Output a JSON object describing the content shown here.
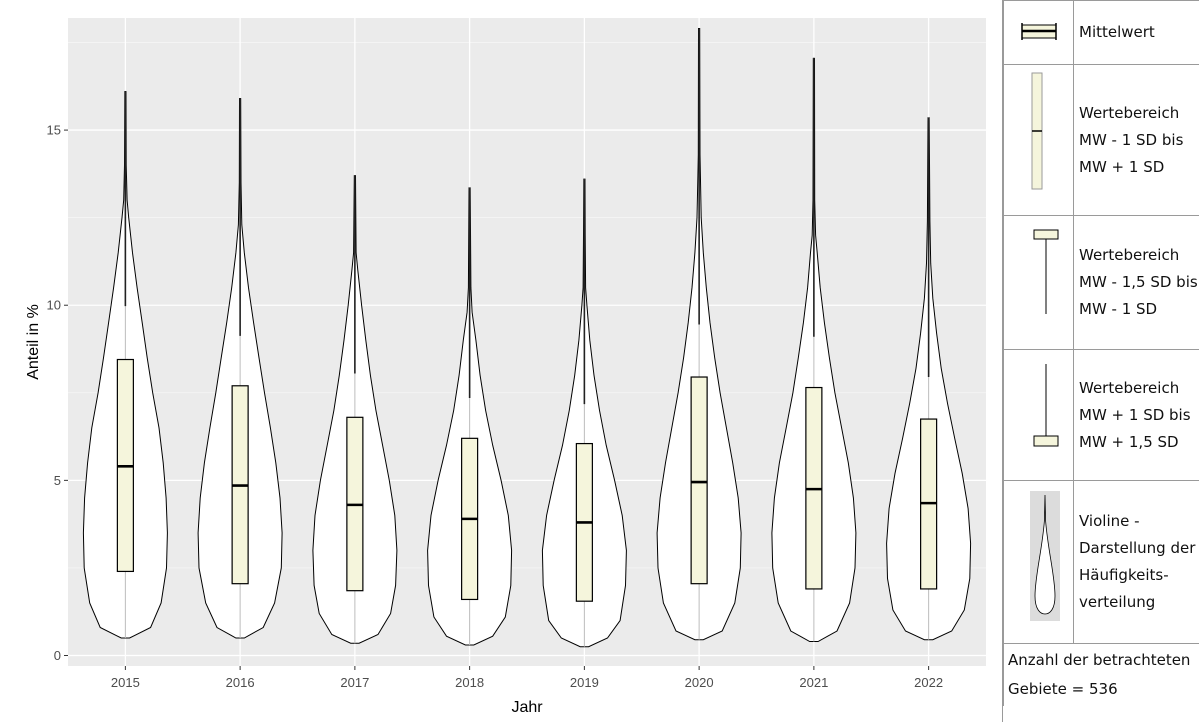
{
  "title": "",
  "chart_data": {
    "type": "violin",
    "xlabel": "Jahr",
    "ylabel": "Anteil in %",
    "ylim": [
      -0.3,
      18.2
    ],
    "yticks": [
      0,
      5,
      10,
      15
    ],
    "ytick_labels": [
      "0",
      "5",
      "10",
      "15"
    ],
    "grid": true,
    "legend_position": "right",
    "categories": [
      "2015",
      "2016",
      "2017",
      "2018",
      "2019",
      "2020",
      "2021",
      "2022"
    ],
    "series": [
      {
        "mean": 5.4,
        "sd_low": 2.4,
        "sd_high": 8.45,
        "min": 0.5,
        "max": 16.1,
        "profile": [
          [
            0.5,
            0.1
          ],
          [
            0.8,
            0.6
          ],
          [
            1.5,
            0.85
          ],
          [
            2.5,
            0.98
          ],
          [
            3.5,
            1.0
          ],
          [
            4.5,
            0.97
          ],
          [
            5.5,
            0.9
          ],
          [
            6.5,
            0.8
          ],
          [
            7.5,
            0.65
          ],
          [
            8.5,
            0.52
          ],
          [
            9.5,
            0.4
          ],
          [
            10.5,
            0.28
          ],
          [
            11.5,
            0.17
          ],
          [
            12.5,
            0.08
          ],
          [
            13,
            0.04
          ],
          [
            14,
            0.02
          ],
          [
            16.1,
            0.01
          ]
        ]
      },
      {
        "mean": 4.85,
        "sd_low": 2.05,
        "sd_high": 7.7,
        "min": 0.5,
        "max": 15.9,
        "profile": [
          [
            0.5,
            0.1
          ],
          [
            0.8,
            0.55
          ],
          [
            1.5,
            0.82
          ],
          [
            2.5,
            0.98
          ],
          [
            3.5,
            1.0
          ],
          [
            4.5,
            0.95
          ],
          [
            5.5,
            0.85
          ],
          [
            6.5,
            0.72
          ],
          [
            7.5,
            0.58
          ],
          [
            8.5,
            0.45
          ],
          [
            9.5,
            0.32
          ],
          [
            10.5,
            0.2
          ],
          [
            11.5,
            0.1
          ],
          [
            12.3,
            0.04
          ],
          [
            13.5,
            0.02
          ],
          [
            15.9,
            0.01
          ]
        ]
      },
      {
        "mean": 4.3,
        "sd_low": 1.85,
        "sd_high": 6.8,
        "min": 0.35,
        "max": 13.7,
        "profile": [
          [
            0.35,
            0.1
          ],
          [
            0.6,
            0.55
          ],
          [
            1.2,
            0.85
          ],
          [
            2,
            0.97
          ],
          [
            3,
            1.0
          ],
          [
            4,
            0.95
          ],
          [
            5,
            0.82
          ],
          [
            6,
            0.66
          ],
          [
            7,
            0.5
          ],
          [
            8,
            0.37
          ],
          [
            9,
            0.26
          ],
          [
            10,
            0.16
          ],
          [
            11,
            0.07
          ],
          [
            11.5,
            0.03
          ],
          [
            13.7,
            0.01
          ]
        ]
      },
      {
        "mean": 3.9,
        "sd_low": 1.6,
        "sd_high": 6.2,
        "min": 0.3,
        "max": 13.35,
        "profile": [
          [
            0.3,
            0.1
          ],
          [
            0.55,
            0.55
          ],
          [
            1.1,
            0.85
          ],
          [
            2,
            0.98
          ],
          [
            3,
            1.0
          ],
          [
            4,
            0.92
          ],
          [
            5,
            0.75
          ],
          [
            6,
            0.55
          ],
          [
            7,
            0.38
          ],
          [
            8,
            0.25
          ],
          [
            9,
            0.15
          ],
          [
            9.8,
            0.06
          ],
          [
            10.5,
            0.03
          ],
          [
            13.35,
            0.01
          ]
        ]
      },
      {
        "mean": 3.8,
        "sd_low": 1.55,
        "sd_high": 6.05,
        "min": 0.25,
        "max": 13.6,
        "profile": [
          [
            0.25,
            0.1
          ],
          [
            0.5,
            0.55
          ],
          [
            1,
            0.85
          ],
          [
            2,
            0.98
          ],
          [
            3,
            1.0
          ],
          [
            4,
            0.9
          ],
          [
            5,
            0.72
          ],
          [
            6,
            0.52
          ],
          [
            7,
            0.36
          ],
          [
            8,
            0.23
          ],
          [
            9,
            0.13
          ],
          [
            10,
            0.06
          ],
          [
            10.5,
            0.03
          ],
          [
            12,
            0.02
          ],
          [
            13.6,
            0.01
          ]
        ]
      },
      {
        "mean": 4.95,
        "sd_low": 2.05,
        "sd_high": 7.95,
        "min": 0.45,
        "max": 17.9,
        "profile": [
          [
            0.45,
            0.1
          ],
          [
            0.7,
            0.55
          ],
          [
            1.5,
            0.85
          ],
          [
            2.5,
            0.98
          ],
          [
            3.5,
            1.0
          ],
          [
            4.5,
            0.93
          ],
          [
            5.5,
            0.8
          ],
          [
            6.5,
            0.65
          ],
          [
            7.5,
            0.5
          ],
          [
            8.5,
            0.37
          ],
          [
            9.5,
            0.26
          ],
          [
            10.5,
            0.17
          ],
          [
            11.5,
            0.1
          ],
          [
            12.5,
            0.05
          ],
          [
            13.7,
            0.03
          ],
          [
            14.3,
            0.02
          ],
          [
            17.9,
            0.01
          ]
        ]
      },
      {
        "mean": 4.75,
        "sd_low": 1.9,
        "sd_high": 7.65,
        "min": 0.4,
        "max": 17.05,
        "profile": [
          [
            0.4,
            0.1
          ],
          [
            0.7,
            0.55
          ],
          [
            1.5,
            0.85
          ],
          [
            2.5,
            0.98
          ],
          [
            3.5,
            1.0
          ],
          [
            4.5,
            0.94
          ],
          [
            5.5,
            0.82
          ],
          [
            6.5,
            0.66
          ],
          [
            7.5,
            0.5
          ],
          [
            8.5,
            0.37
          ],
          [
            9.5,
            0.25
          ],
          [
            10.5,
            0.15
          ],
          [
            11.5,
            0.08
          ],
          [
            12,
            0.04
          ],
          [
            13,
            0.02
          ],
          [
            17.05,
            0.01
          ]
        ]
      },
      {
        "mean": 4.35,
        "sd_low": 1.9,
        "sd_high": 6.75,
        "min": 0.45,
        "max": 15.35,
        "profile": [
          [
            0.45,
            0.1
          ],
          [
            0.7,
            0.55
          ],
          [
            1.3,
            0.85
          ],
          [
            2.2,
            0.98
          ],
          [
            3.2,
            1.0
          ],
          [
            4.2,
            0.94
          ],
          [
            5.2,
            0.8
          ],
          [
            6.2,
            0.62
          ],
          [
            7.2,
            0.45
          ],
          [
            8.2,
            0.3
          ],
          [
            9.2,
            0.19
          ],
          [
            10.2,
            0.1
          ],
          [
            11.2,
            0.05
          ],
          [
            12.4,
            0.03
          ],
          [
            15.35,
            0.01
          ]
        ]
      }
    ]
  },
  "legend": {
    "items": [
      {
        "label": "Mittelwert"
      },
      {
        "label": "Wertebereich MW - 1 SD bis MW + 1 SD"
      },
      {
        "label": "Wertebereich MW - 1,5 SD bis MW - 1 SD"
      },
      {
        "label": "Wertebereich MW + 1 SD bis MW + 1,5 SD"
      },
      {
        "label": "Violine - Darstellung der Häufigkeits-verteilung"
      }
    ],
    "note": "Anzahl der betrachteten Gebiete = 536"
  },
  "colors": {
    "panel": "#ebebeb",
    "grid_major": "#ffffff",
    "box_fill": "#f5f5dc",
    "violin_fill": "#ffffff",
    "outline": "#000000",
    "whisker": "#bdbdbd"
  }
}
